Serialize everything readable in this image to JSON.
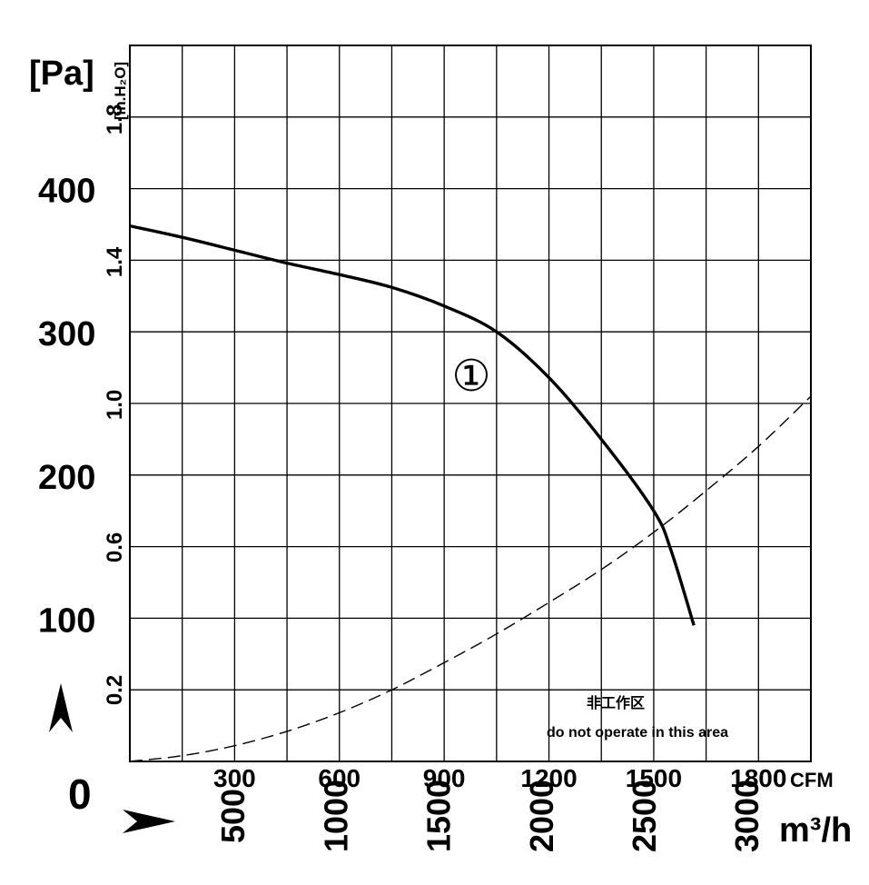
{
  "chart_data": {
    "type": "line",
    "units": {
      "pressure_pa": "[Pa]",
      "pressure_in": "[in.H₂O]",
      "flow_cfm": "CFM",
      "flow_m3h": "m³/h"
    },
    "origin_label": "0",
    "y_pa_ticks": [
      "100",
      "200",
      "300",
      "400"
    ],
    "y_pa_tick_values": [
      100,
      200,
      300,
      400
    ],
    "y_in_ticks": [
      "0.2",
      "0.6",
      "1.0",
      "1.4",
      "1.8"
    ],
    "y_in_tick_values": [
      0.2,
      0.6,
      1.0,
      1.4,
      1.8
    ],
    "x_cfm_ticks": [
      "300",
      "600",
      "900",
      "1200",
      "1500",
      "1800"
    ],
    "x_cfm_tick_values": [
      300,
      600,
      900,
      1200,
      1500,
      1800
    ],
    "x_m3h_ticks": [
      "500",
      "1000",
      "1500",
      "2000",
      "2500",
      "3000"
    ],
    "x_m3h_tick_values": [
      500,
      1000,
      1500,
      2000,
      2500,
      3000
    ],
    "xlim_cfm": [
      0,
      1950
    ],
    "ylim_pa": [
      0,
      500
    ],
    "grid": true,
    "series": [
      {
        "name": "①",
        "style": "solid",
        "x_cfm": [
          0,
          150,
          300,
          450,
          600,
          750,
          900,
          1050,
          1200,
          1350,
          1500,
          1550,
          1615
        ],
        "y_pa": [
          374,
          366,
          357,
          348,
          340,
          331,
          318,
          300,
          268,
          225,
          175,
          147,
          95
        ]
      },
      {
        "style": "dashed",
        "x_cfm": [
          0,
          150,
          300,
          450,
          600,
          750,
          900,
          1050,
          1200,
          1350,
          1500,
          1650,
          1800,
          1950
        ],
        "y_pa": [
          0,
          4,
          11,
          21,
          34,
          50,
          69,
          89,
          111,
          134,
          160,
          189,
          220,
          255
        ]
      }
    ],
    "curve_label": "①",
    "annotation_cn": "非工作区",
    "annotation_en": "do not operate in this area"
  }
}
